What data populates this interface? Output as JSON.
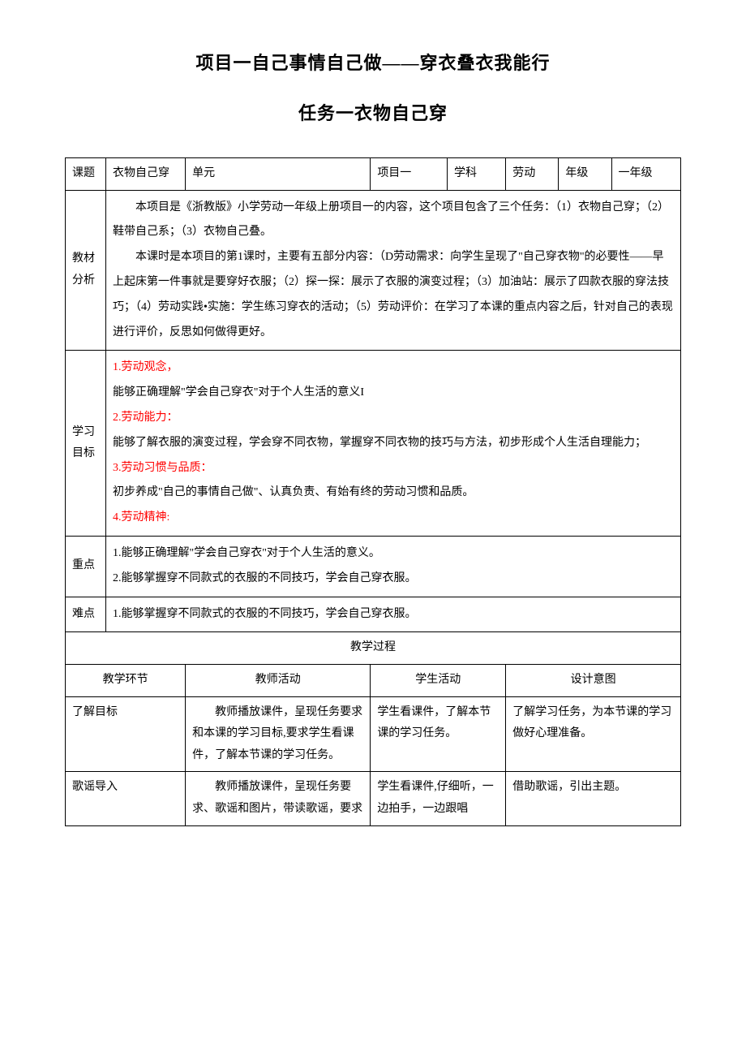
{
  "colors": {
    "text_default": "#000000",
    "text_red": "#ff0000",
    "border": "#000000",
    "background": "#ffffff"
  },
  "typography": {
    "title_fontsize": 22,
    "body_fontsize": 14,
    "line_height": 1.9,
    "font_family": "SimSun"
  },
  "title": {
    "main": "项目一自己事情自己做——穿衣叠衣我能行",
    "sub": "任务一衣物自己穿"
  },
  "header_row": {
    "labels": [
      "课题",
      "单元",
      "学科",
      "年级"
    ],
    "values": [
      "衣物自己穿",
      "项目一",
      "劳动",
      "一年级"
    ]
  },
  "sections": {
    "material_analysis": {
      "label": "教材分析",
      "para1": "本项目是《浙教版》小学劳动一年级上册项目一的内容，这个项目包含了三个任务：（1）衣物自己穿；（2）鞋带自己系；（3）衣物自己叠。",
      "para2": "本课时是本项目的第1课时，主要有五部分内容：（D劳动需求：向学生呈现了\"自己穿衣物\"的必要性——早上起床第一件事就是要穿好衣服；（2）探一探：展示了衣服的演变过程；（3）加油站：展示了四款衣服的穿法技巧；（4）劳动实践•实施：学生练习穿衣的活动；（5）劳动评价：在学习了本课的重点内容之后，针对自己的表现进行评价，反思如何做得更好。"
    },
    "learning_goals": {
      "label": "学习目标",
      "items": [
        {
          "heading": "1.劳动观念，",
          "text": "能够正确理解\"学会自己穿衣\"对于个人生活的意义I"
        },
        {
          "heading": "2.劳动能力：",
          "text": "能够了解衣服的演变过程，学会穿不同衣物，掌握穿不同衣物的技巧与方法，初步形成个人生活自理能力；"
        },
        {
          "heading": "3.劳动习惯与品质：",
          "text": "初步养成\"自己的事情自己做\"、认真负责、有始有终的劳动习惯和品质。"
        },
        {
          "heading": "4.劳动精神:",
          "text": ""
        }
      ]
    },
    "key_points": {
      "label": "重点",
      "items": [
        "1.能够正确理解\"学会自己穿衣\"对于个人生活的意义。",
        "2.能够掌握穿不同款式的衣服的不同技巧，学会自己穿衣服。"
      ]
    },
    "difficulties": {
      "label": "难点",
      "items": [
        "1.能够掌握穿不同款式的衣服的不同技巧，学会自己穿衣服。"
      ]
    }
  },
  "process": {
    "title": "教学过程",
    "headers": [
      "教学环节",
      "教师活动",
      "学生活动",
      "设计意图"
    ],
    "rows": [
      {
        "phase": "了解目标",
        "teacher": "教师播放课件，呈现任务要求和本课的学习目标,要求学生看课件，了解本节课的学习任务。",
        "student": "学生看课件，了解本节课的学习任务。",
        "intent": "了解学习任务，为本节课的学习做好心理准备。"
      },
      {
        "phase": "歌谣导入",
        "teacher": "教师播放课件，呈现任务要求、歌谣和图片，带读歌谣，要求",
        "student": "学生看课件,仔细听，一边拍手，一边跟唱",
        "intent": "借助歌谣，引出主题。"
      }
    ]
  }
}
